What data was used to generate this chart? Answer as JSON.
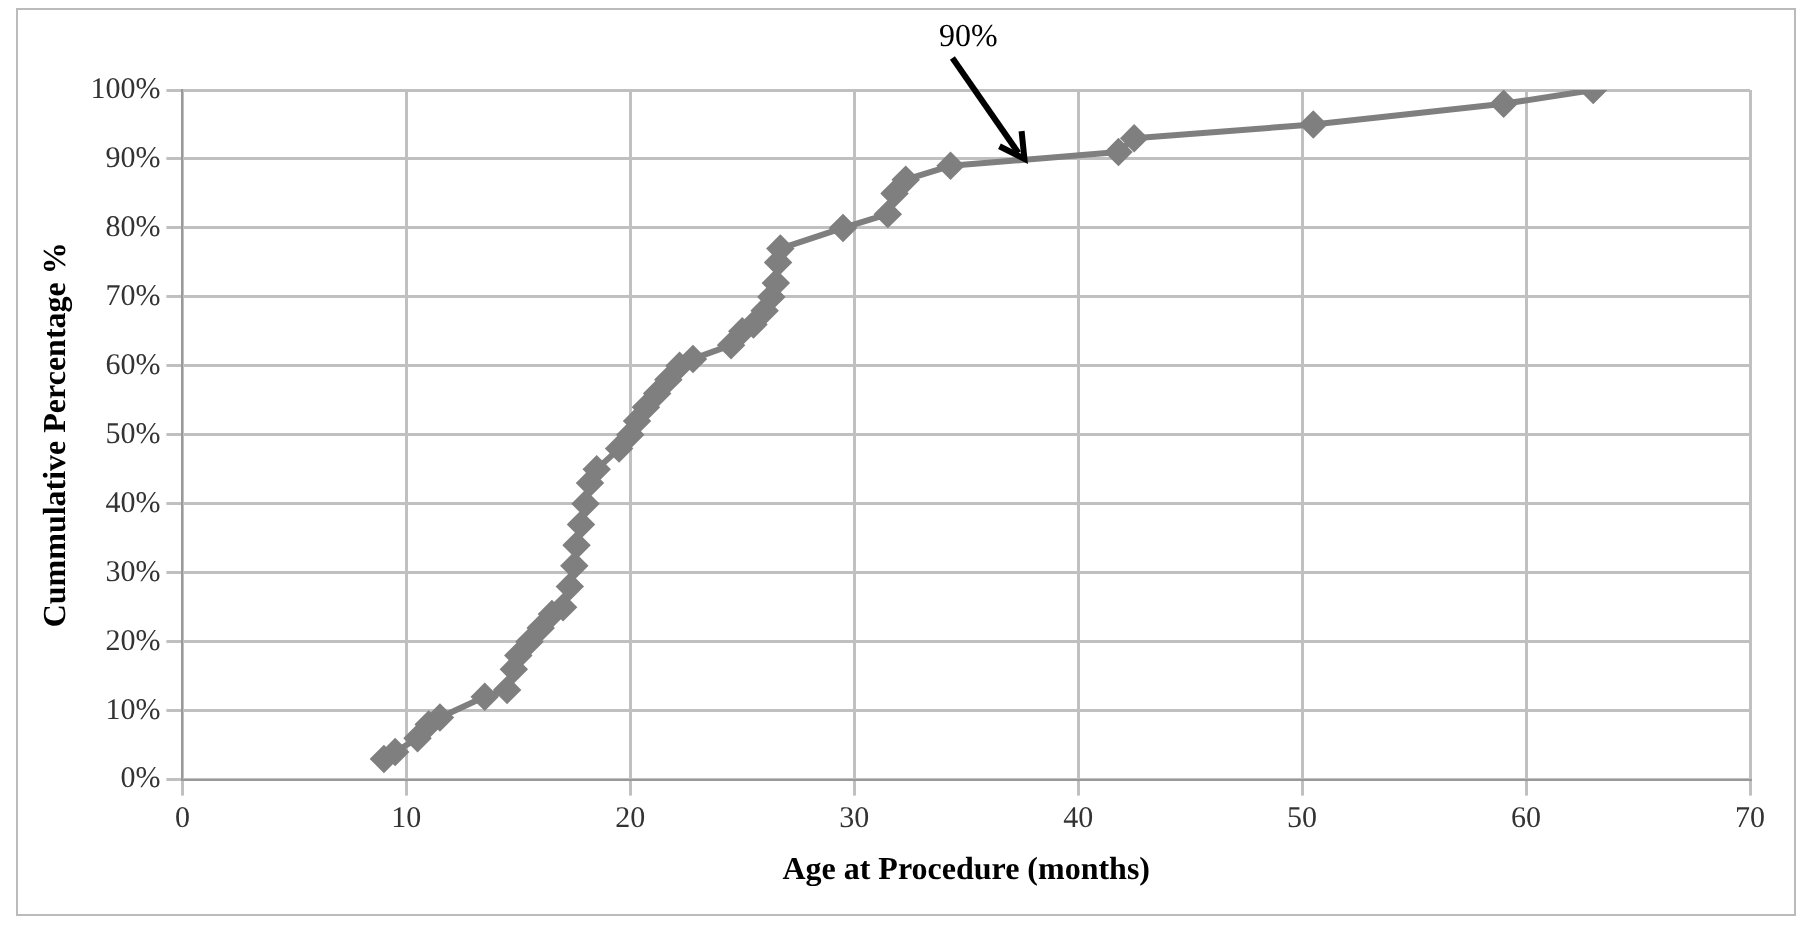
{
  "chart_data": {
    "type": "line",
    "xlabel": "Age at Procedure (months)",
    "ylabel": "Cummulative Percentage %",
    "series": [
      {
        "color": "#7f7f7f",
        "x": [
          9,
          9.5,
          10.5,
          11,
          11.5,
          13.5,
          14.5,
          14.8,
          15,
          15.5,
          16,
          16.5,
          17,
          17.3,
          17.5,
          17.6,
          17.8,
          18,
          18.2,
          18.5,
          19.5,
          20,
          20.3,
          20.7,
          21.2,
          21.7,
          22.2,
          22.8,
          24.5,
          25,
          25.5,
          26,
          26.3,
          26.5,
          26.6,
          26.7,
          29.5,
          31.5,
          31.8,
          32.3,
          34.3,
          41.8,
          42.5,
          50.5,
          59,
          63
        ],
        "values": [
          3,
          4,
          6,
          8,
          9,
          12,
          13,
          16,
          18,
          20,
          22,
          24,
          25,
          28,
          31,
          34,
          37,
          40,
          43,
          45,
          48,
          50,
          52,
          54,
          56,
          58,
          60,
          61,
          63,
          65,
          66,
          68,
          70,
          72,
          75,
          77,
          80,
          82,
          85,
          87,
          89,
          91,
          93,
          95,
          98,
          100
        ]
      }
    ],
    "xlim": [
      0,
      70
    ],
    "xticks": [
      0,
      10,
      20,
      30,
      40,
      50,
      60,
      70
    ],
    "ylim": [
      0,
      100
    ],
    "yticks": [
      {
        "value": 0,
        "label": "0%"
      },
      {
        "value": 10,
        "label": "10%"
      },
      {
        "value": 20,
        "label": "20%"
      },
      {
        "value": 30,
        "label": "30%"
      },
      {
        "value": 40,
        "label": "40%"
      },
      {
        "value": 50,
        "label": "50%"
      },
      {
        "value": 60,
        "label": "60%"
      },
      {
        "value": 70,
        "label": "70%"
      },
      {
        "value": 80,
        "label": "80%"
      },
      {
        "value": 90,
        "label": "90%"
      },
      {
        "value": 100,
        "label": "100%"
      }
    ],
    "grid": true,
    "legend": false,
    "marker": "diamond",
    "line_style": "solid",
    "annotations": [
      {
        "text": "90%",
        "x": 37.6,
        "y": 90
      }
    ]
  }
}
